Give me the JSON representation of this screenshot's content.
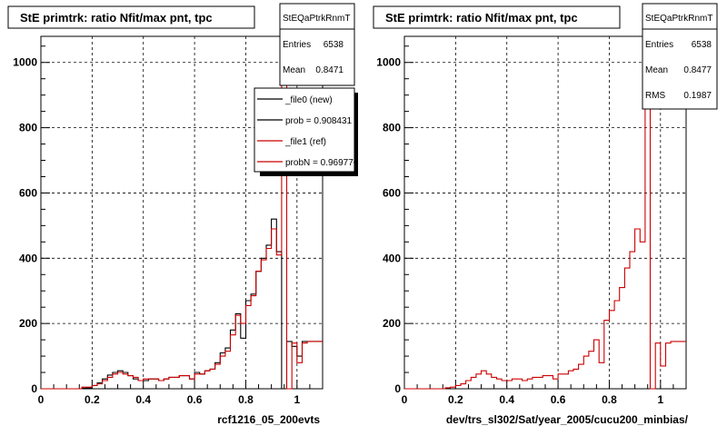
{
  "chart_data": [
    {
      "type": "line",
      "title": "StE primtrk: ratio Nfit/max pnt, tpc",
      "xlabel": "rcf1216_05_200evts",
      "ylabel": "",
      "xlim": [
        0,
        1.1
      ],
      "ylim": [
        0,
        1080
      ],
      "xticks": [
        "0",
        "0.2",
        "0.4",
        "0.6",
        "0.8",
        "1"
      ],
      "yticks": [
        "0",
        "200",
        "400",
        "600",
        "800",
        "1000"
      ],
      "grid": true,
      "stats": {
        "title": "StEQaPtrkRnmT",
        "rows": [
          {
            "label": "Entries",
            "value": "6538"
          },
          {
            "label": "Mean",
            "value": "0.8471"
          }
        ]
      },
      "legend": {
        "position": "top-right",
        "entries": [
          {
            "label": "_file0 (new)",
            "color": "#000000"
          },
          {
            "label": "prob = 0.908431",
            "color": "#000000"
          },
          {
            "label": "_file1 (ref)",
            "color": "#cc0000"
          },
          {
            "label": "probN = 0.969776",
            "color": "#cc0000"
          }
        ]
      },
      "bin_width": 0.02,
      "series": [
        {
          "name": "_file0 (new)",
          "color": "#000000",
          "values": [
            0,
            0,
            0,
            0,
            0,
            0,
            0,
            0,
            2,
            3,
            10,
            18,
            30,
            42,
            50,
            55,
            50,
            40,
            30,
            25,
            25,
            30,
            30,
            25,
            30,
            35,
            35,
            40,
            40,
            30,
            50,
            45,
            55,
            60,
            80,
            110,
            125,
            180,
            230,
            155,
            270,
            290,
            360,
            400,
            440,
            520,
            420,
            0,
            145,
            130,
            100,
            145,
            145,
            145,
            145
          ]
        },
        {
          "name": "_file1 (ref)",
          "color": "#cc0000",
          "values": [
            0,
            0,
            0,
            0,
            0,
            0,
            0,
            0,
            5,
            5,
            10,
            15,
            25,
            35,
            45,
            50,
            45,
            40,
            35,
            25,
            30,
            30,
            30,
            25,
            30,
            35,
            35,
            40,
            40,
            30,
            45,
            45,
            55,
            60,
            75,
            100,
            115,
            165,
            225,
            200,
            255,
            285,
            360,
            395,
            430,
            490,
            410,
            1020,
            0,
            140,
            80,
            140,
            145,
            145,
            145
          ]
        }
      ]
    },
    {
      "type": "line",
      "title": "StE primtrk: ratio Nfit/max pnt, tpc",
      "xlabel": "dev/trs_sl302/Sat/year_2005/cucu200_minbias/",
      "ylabel": "",
      "xlim": [
        0,
        1.1
      ],
      "ylim": [
        0,
        1080
      ],
      "xticks": [
        "0",
        "0.2",
        "0.4",
        "0.6",
        "0.8",
        "1"
      ],
      "yticks": [
        "0",
        "200",
        "400",
        "600",
        "800",
        "1000"
      ],
      "grid": true,
      "stats": {
        "title": "StEQaPtrkRnmT",
        "rows": [
          {
            "label": "Entries",
            "value": "6538"
          },
          {
            "label": "Mean",
            "value": "0.8477"
          },
          {
            "label": "RMS",
            "value": "0.1987"
          }
        ]
      },
      "bin_width": 0.02,
      "series": [
        {
          "name": "",
          "color": "#cc0000",
          "values": [
            0,
            0,
            0,
            0,
            0,
            0,
            0,
            0,
            3,
            5,
            10,
            15,
            25,
            35,
            45,
            55,
            45,
            35,
            30,
            25,
            25,
            30,
            30,
            25,
            30,
            35,
            35,
            40,
            40,
            30,
            45,
            45,
            55,
            60,
            75,
            100,
            115,
            150,
            80,
            210,
            240,
            270,
            310,
            370,
            420,
            490,
            450,
            1020,
            0,
            140,
            70,
            140,
            145,
            145,
            145
          ]
        }
      ]
    }
  ]
}
